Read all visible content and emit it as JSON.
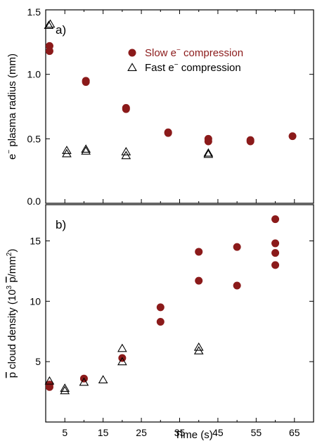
{
  "chart_data": [
    {
      "type": "scatter",
      "panel_label": "a)",
      "xlim": [
        0,
        70
      ],
      "ylim": [
        0,
        1.5
      ],
      "xticks": [],
      "yticks": [
        "0.0",
        "0.5",
        "1.0",
        "1.5"
      ],
      "ytick_values": [
        0,
        0.5,
        1.0,
        1.5
      ],
      "ylabel_parts": [
        "e",
        "−",
        " plasma radius (mm)"
      ],
      "xlabel": "",
      "legend_position": "top-right",
      "series": [
        {
          "name_parts": [
            "Slow e",
            "−",
            " compression"
          ],
          "marker": "filled-circle",
          "color": "#8b1a1a",
          "points": [
            [
              1,
              1.22
            ],
            [
              1,
              1.18
            ],
            [
              10.5,
              0.95
            ],
            [
              10.5,
              0.94
            ],
            [
              21,
              0.74
            ],
            [
              21,
              0.73
            ],
            [
              32,
              0.55
            ],
            [
              32,
              0.545
            ],
            [
              42.5,
              0.5
            ],
            [
              42.5,
              0.48
            ],
            [
              53.5,
              0.49
            ],
            [
              53.5,
              0.48
            ],
            [
              64.5,
              0.52
            ]
          ]
        },
        {
          "name_parts": [
            "Fast e",
            "−",
            " compression"
          ],
          "marker": "open-triangle",
          "color": "#000000",
          "points": [
            [
              0.8,
              1.38
            ],
            [
              1.2,
              1.39
            ],
            [
              5.5,
              0.41
            ],
            [
              5.5,
              0.385
            ],
            [
              10.5,
              0.42
            ],
            [
              10.5,
              0.405
            ],
            [
              21,
              0.4
            ],
            [
              21,
              0.37
            ],
            [
              42.5,
              0.39
            ],
            [
              42.5,
              0.38
            ]
          ]
        }
      ]
    },
    {
      "type": "scatter",
      "panel_label": "b)",
      "xlim": [
        0,
        70
      ],
      "ylim": [
        0,
        18
      ],
      "xticks": [
        "5",
        "15",
        "25",
        "35",
        "45",
        "55",
        "65"
      ],
      "xtick_values": [
        5,
        15,
        25,
        35,
        45,
        55,
        65
      ],
      "yticks": [
        "5",
        "10",
        "15"
      ],
      "ytick_values": [
        5,
        10,
        15
      ],
      "ylabel_parts": [
        "p",
        " cloud density (10",
        "3",
        " ",
        "p",
        "/mm",
        "2",
        ")"
      ],
      "xlabel": "Time (s)",
      "series": [
        {
          "marker": "filled-circle",
          "color": "#8b1a1a",
          "points": [
            [
              1,
              3.1
            ],
            [
              1,
              2.9
            ],
            [
              10,
              3.6
            ],
            [
              20,
              5.3
            ],
            [
              30,
              9.5
            ],
            [
              30,
              8.3
            ],
            [
              40,
              14.1
            ],
            [
              40,
              11.7
            ],
            [
              50,
              14.5
            ],
            [
              50,
              11.3
            ],
            [
              60,
              16.8
            ],
            [
              60,
              14.8
            ],
            [
              60,
              14.0
            ],
            [
              60,
              13.0
            ]
          ]
        },
        {
          "marker": "open-triangle",
          "color": "#000000",
          "points": [
            [
              1,
              3.4
            ],
            [
              5,
              2.8
            ],
            [
              5,
              2.6
            ],
            [
              10,
              3.3
            ],
            [
              15,
              3.5
            ],
            [
              20,
              6.1
            ],
            [
              20,
              5.0
            ],
            [
              40,
              6.2
            ],
            [
              40,
              5.9
            ]
          ]
        }
      ]
    }
  ]
}
